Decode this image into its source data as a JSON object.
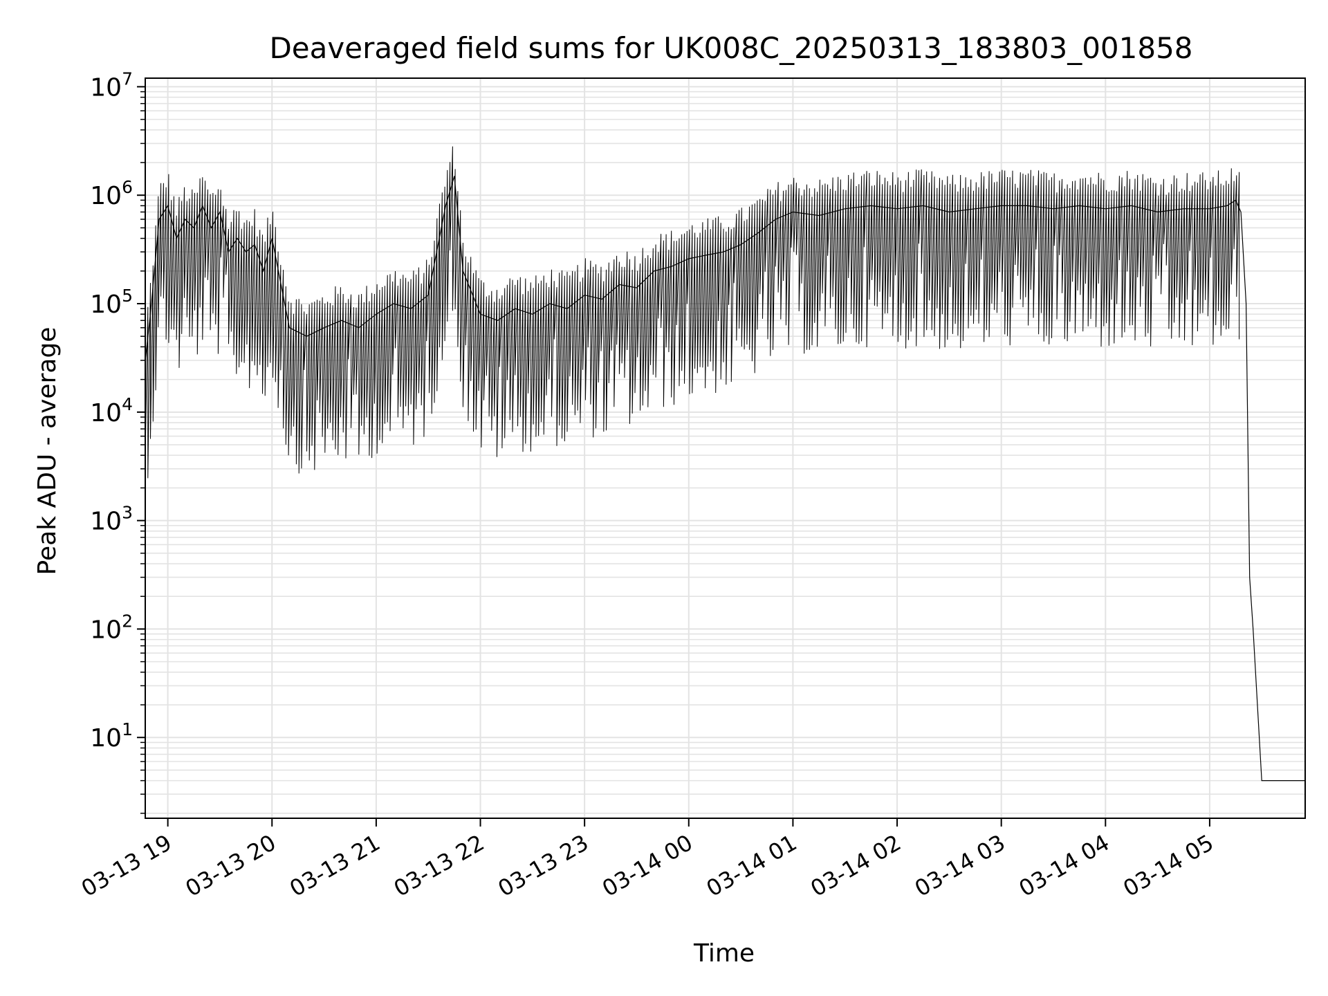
{
  "chart_data": {
    "type": "line",
    "title": "Deaveraged field sums for UK008C_20250313_183803_001858",
    "xlabel": "Time",
    "ylabel": "Peak ADU - average",
    "yscale": "log",
    "xlim": [
      "2025-03-13 18:47",
      "2025-03-14 05:55"
    ],
    "ylim": [
      1.8,
      12000000
    ],
    "grid": true,
    "x_ticks": [
      {
        "t": "2025-03-13 19:00",
        "label": "03-13 19"
      },
      {
        "t": "2025-03-13 20:00",
        "label": "03-13 20"
      },
      {
        "t": "2025-03-13 21:00",
        "label": "03-13 21"
      },
      {
        "t": "2025-03-13 22:00",
        "label": "03-13 22"
      },
      {
        "t": "2025-03-13 23:00",
        "label": "03-13 23"
      },
      {
        "t": "2025-03-14 00:00",
        "label": "03-14 00"
      },
      {
        "t": "2025-03-14 01:00",
        "label": "03-14 01"
      },
      {
        "t": "2025-03-14 02:00",
        "label": "03-14 02"
      },
      {
        "t": "2025-03-14 03:00",
        "label": "03-14 03"
      },
      {
        "t": "2025-03-14 04:00",
        "label": "03-14 04"
      },
      {
        "t": "2025-03-14 05:00",
        "label": "03-14 05"
      }
    ],
    "y_ticks": [
      {
        "value": 10,
        "base": "10",
        "exp": "1"
      },
      {
        "value": 100,
        "base": "10",
        "exp": "2"
      },
      {
        "value": 1000,
        "base": "10",
        "exp": "3"
      },
      {
        "value": 10000,
        "base": "10",
        "exp": "4"
      },
      {
        "value": 100000,
        "base": "10",
        "exp": "5"
      },
      {
        "value": 1000000,
        "base": "10",
        "exp": "6"
      },
      {
        "value": 10000000,
        "base": "10",
        "exp": "7"
      }
    ],
    "line_color": "#000000",
    "grid_color": "#e3e3e3",
    "series": [
      {
        "x": [
          "2025-03-13 18:47",
          "2025-03-13 18:50",
          "2025-03-13 18:55",
          "2025-03-13 19:00",
          "2025-03-13 19:05",
          "2025-03-13 19:10",
          "2025-03-13 19:15",
          "2025-03-13 19:20",
          "2025-03-13 19:25",
          "2025-03-13 19:30",
          "2025-03-13 19:35",
          "2025-03-13 19:40",
          "2025-03-13 19:45",
          "2025-03-13 19:50",
          "2025-03-13 19:55",
          "2025-03-13 20:00",
          "2025-03-13 20:10",
          "2025-03-13 20:20",
          "2025-03-13 20:30",
          "2025-03-13 20:40",
          "2025-03-13 20:50",
          "2025-03-13 21:00",
          "2025-03-13 21:10",
          "2025-03-13 21:20",
          "2025-03-13 21:30",
          "2025-03-13 21:40",
          "2025-03-13 21:45",
          "2025-03-13 21:50",
          "2025-03-13 22:00",
          "2025-03-13 22:10",
          "2025-03-13 22:20",
          "2025-03-13 22:30",
          "2025-03-13 22:40",
          "2025-03-13 22:50",
          "2025-03-13 23:00",
          "2025-03-13 23:10",
          "2025-03-13 23:20",
          "2025-03-13 23:30",
          "2025-03-13 23:40",
          "2025-03-13 23:50",
          "2025-03-14 00:00",
          "2025-03-14 00:10",
          "2025-03-14 00:20",
          "2025-03-14 00:30",
          "2025-03-14 00:40",
          "2025-03-14 00:50",
          "2025-03-14 01:00",
          "2025-03-14 01:15",
          "2025-03-14 01:30",
          "2025-03-14 01:45",
          "2025-03-14 02:00",
          "2025-03-14 02:15",
          "2025-03-14 02:30",
          "2025-03-14 02:45",
          "2025-03-14 03:00",
          "2025-03-14 03:15",
          "2025-03-14 03:30",
          "2025-03-14 03:45",
          "2025-03-14 04:00",
          "2025-03-14 04:15",
          "2025-03-14 04:30",
          "2025-03-14 04:45",
          "2025-03-14 05:00",
          "2025-03-14 05:10",
          "2025-03-14 05:15",
          "2025-03-14 05:18",
          "2025-03-14 05:21",
          "2025-03-14 05:23",
          "2025-03-14 05:25",
          "2025-03-14 05:30",
          "2025-03-14 05:40",
          "2025-03-14 05:55"
        ],
        "y": [
          30000,
          80000,
          600000,
          800000,
          400000,
          600000,
          500000,
          800000,
          500000,
          700000,
          300000,
          400000,
          300000,
          350000,
          200000,
          400000,
          60000,
          50000,
          60000,
          70000,
          60000,
          80000,
          100000,
          90000,
          120000,
          800000,
          1500000,
          200000,
          80000,
          70000,
          90000,
          80000,
          100000,
          90000,
          120000,
          110000,
          150000,
          140000,
          200000,
          220000,
          260000,
          280000,
          300000,
          350000,
          450000,
          600000,
          700000,
          650000,
          750000,
          800000,
          750000,
          800000,
          700000,
          750000,
          800000,
          800000,
          750000,
          800000,
          750000,
          800000,
          700000,
          750000,
          750000,
          800000,
          900000,
          700000,
          100000,
          300,
          100,
          4,
          4,
          4
        ]
      }
    ]
  }
}
